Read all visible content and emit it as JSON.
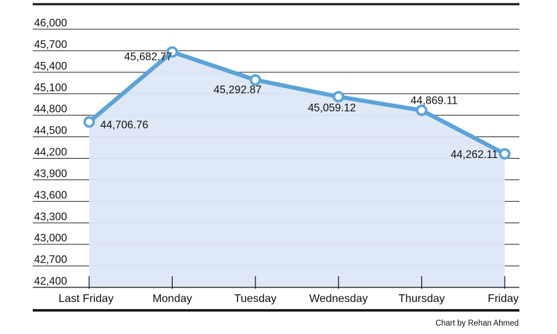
{
  "chart_data": {
    "type": "line",
    "categories": [
      "Last Friday",
      "Monday",
      "Tuesday",
      "Wednesday",
      "Thursday",
      "Friday"
    ],
    "values": [
      44706.76,
      45682.77,
      45292.87,
      45059.12,
      44869.11,
      44262.11
    ],
    "data_labels": [
      "44,706.76",
      "45,682.77",
      "45,292.87",
      "45,059.12",
      "44,869.11",
      "44,262.11"
    ],
    "ylim": [
      42400,
      46000
    ],
    "yticks": [
      42400,
      42700,
      43000,
      43300,
      43600,
      43900,
      44200,
      44500,
      44800,
      45100,
      45400,
      45700,
      46000
    ],
    "ytick_labels": [
      "42,400",
      "42,700",
      "43,000",
      "43,300",
      "43,600",
      "43,900",
      "44,200",
      "44,500",
      "44,800",
      "45,100",
      "45,400",
      "45,700",
      "46,000"
    ],
    "grid": true,
    "fill_under_line": true,
    "title": "",
    "xlabel": "",
    "ylabel": "",
    "colors": {
      "line": "#5ba3d9",
      "fill": "#dde7f5",
      "marker_fill": "#ffffff",
      "grid": "#222222",
      "frame": "#111111"
    }
  },
  "credit": "Chart by Rehan Ahmed"
}
